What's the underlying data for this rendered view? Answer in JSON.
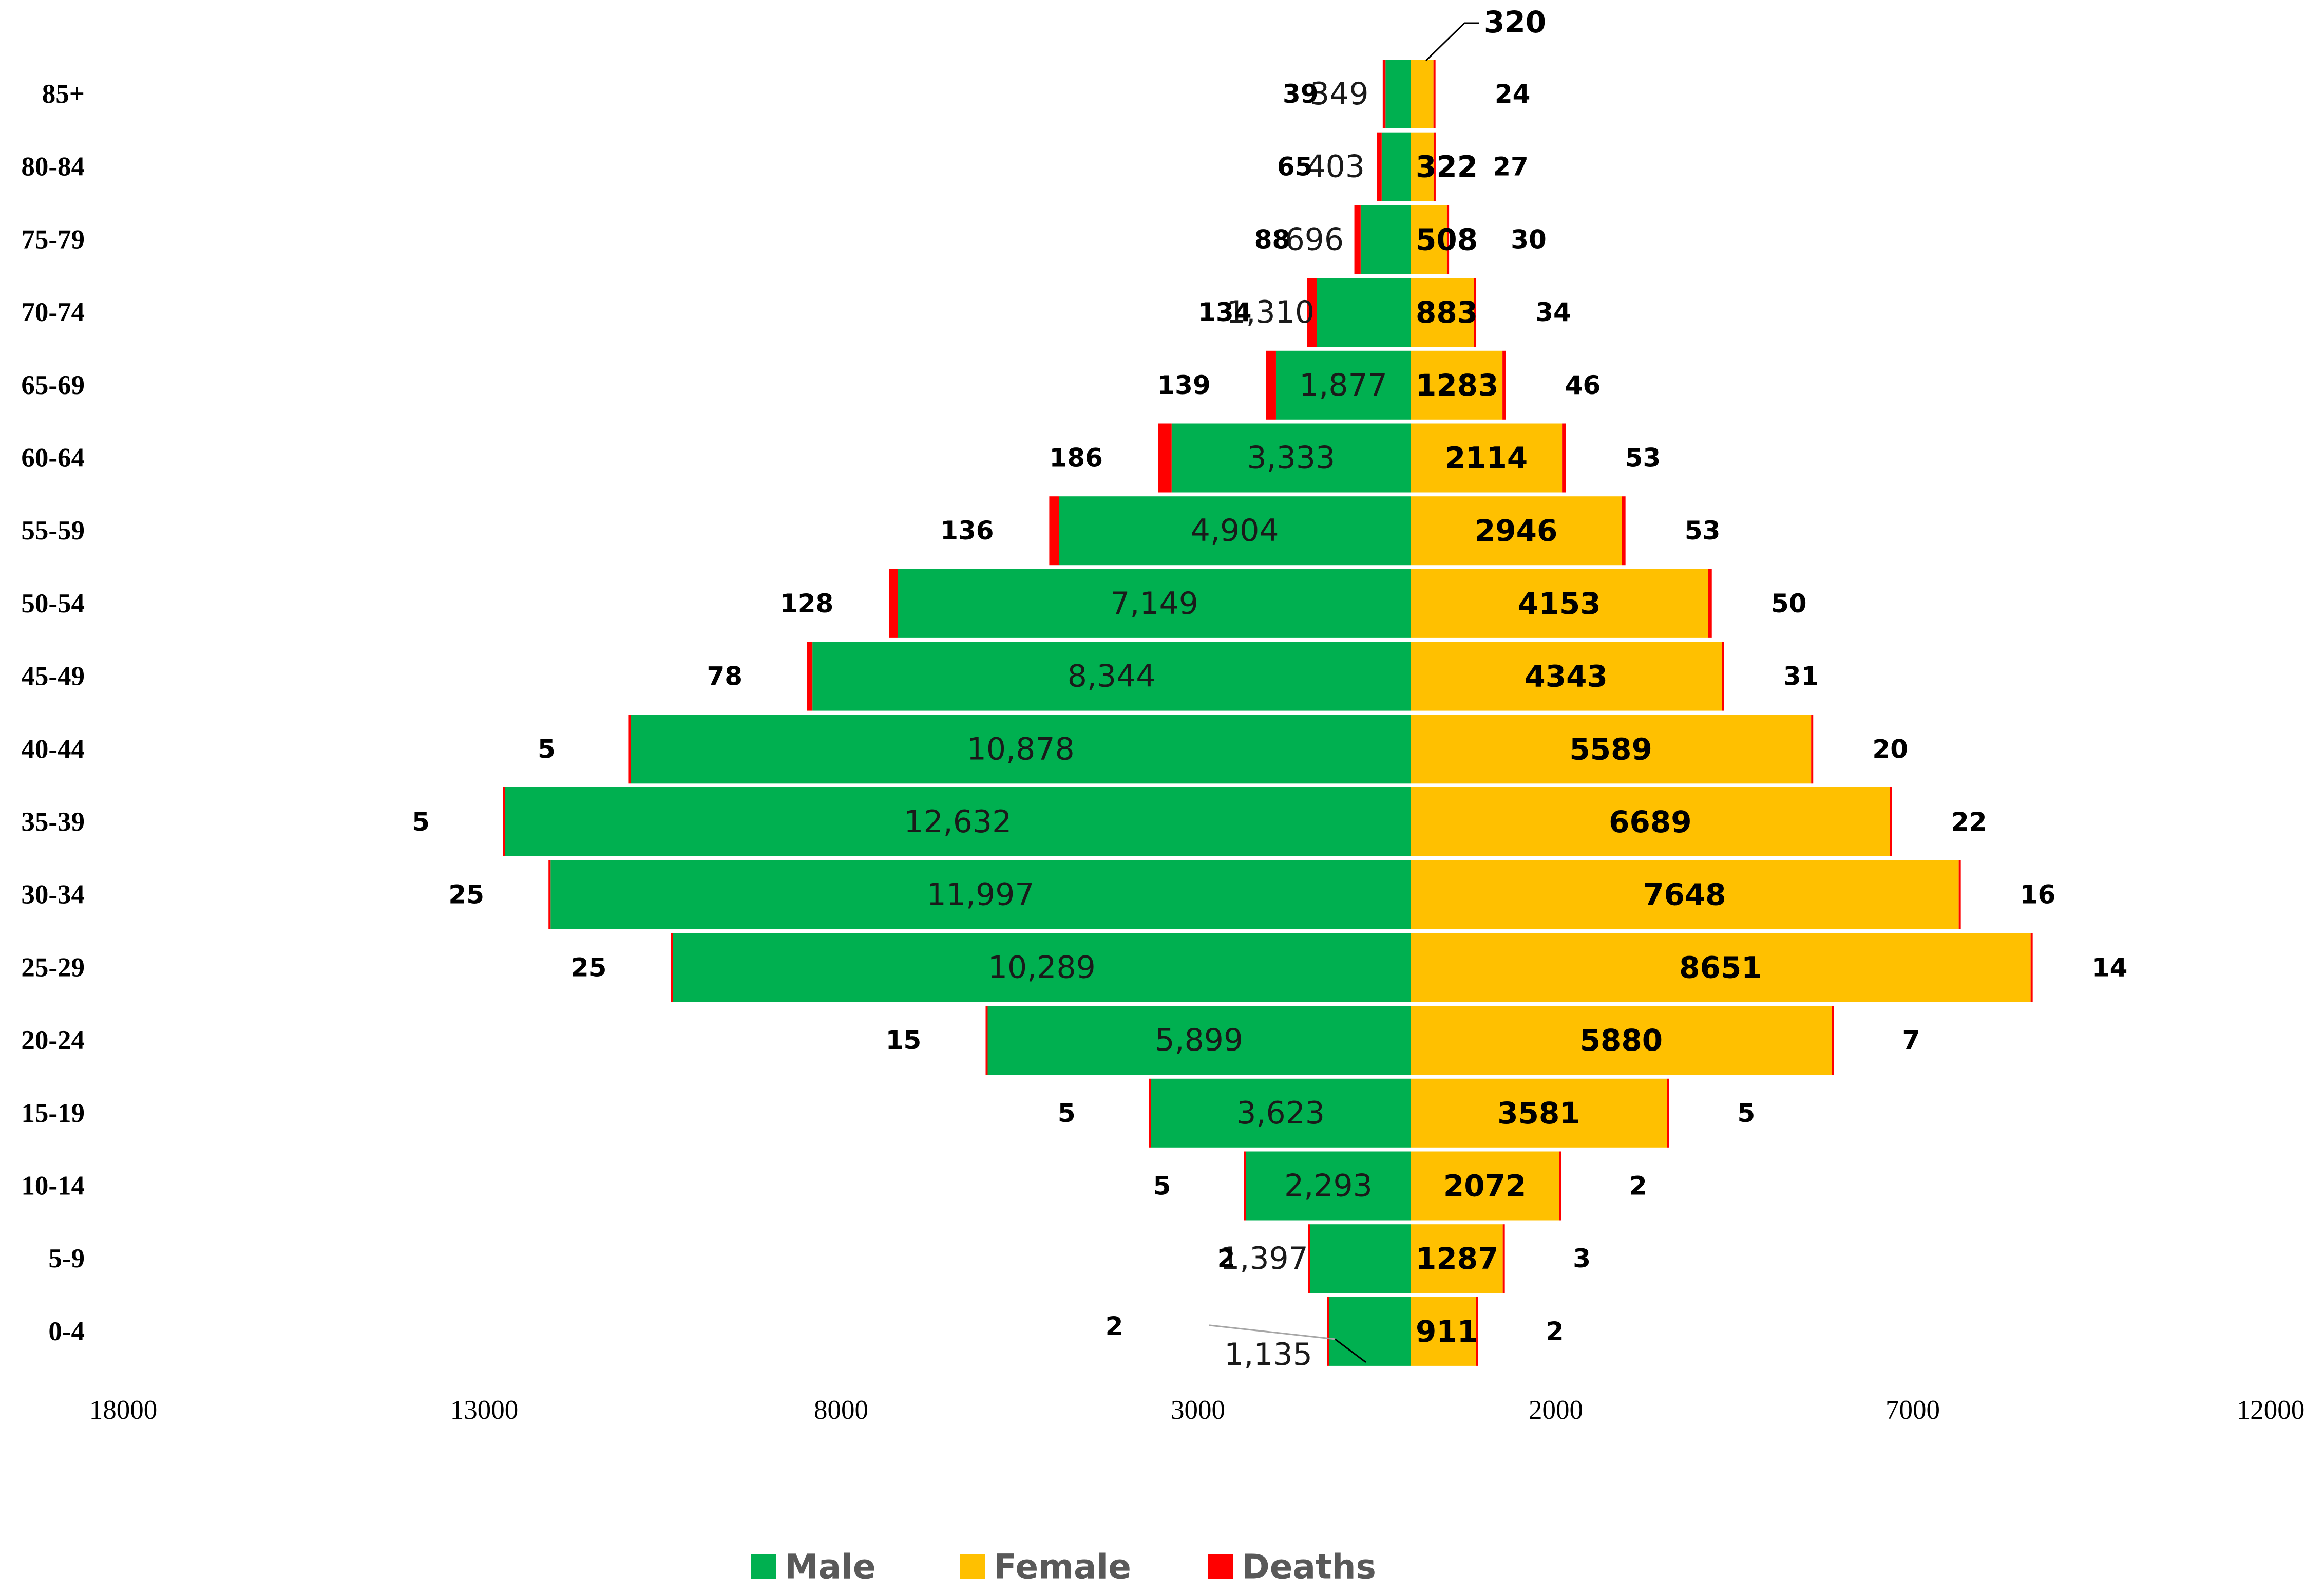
{
  "chart_data": {
    "type": "bar",
    "orientation": "horizontal",
    "subtype": "population-pyramid",
    "categories": [
      "85+",
      "80-84",
      "75-79",
      "70-74",
      "65-69",
      "60-64",
      "55-59",
      "50-54",
      "45-49",
      "40-44",
      "35-39",
      "30-34",
      "25-29",
      "20-24",
      "15-19",
      "10-14",
      "5-9",
      "0-4"
    ],
    "series": [
      {
        "name": "Male",
        "color": "#00b050",
        "values": [
          349,
          403,
          696,
          1310,
          1877,
          3333,
          4904,
          7149,
          8344,
          10878,
          12632,
          11997,
          10289,
          5899,
          3623,
          2293,
          1397,
          1135
        ],
        "value_labels": [
          "349",
          "403",
          "696",
          "1,310",
          "1,877",
          "3,333",
          "4,904",
          "7,149",
          "8,344",
          "10,878",
          "12,632",
          "11,997",
          "10,289",
          "5,899",
          "3,623",
          "2,293",
          "1,397",
          "1,135"
        ],
        "male_deaths": [
          39,
          65,
          88,
          134,
          139,
          186,
          136,
          128,
          78,
          5,
          5,
          25,
          25,
          15,
          5,
          5,
          2,
          2
        ]
      },
      {
        "name": "Female",
        "color": "#ffc000",
        "values": [
          320,
          322,
          508,
          883,
          1283,
          2114,
          2946,
          4153,
          4343,
          5589,
          6689,
          7648,
          8651,
          5880,
          3581,
          2072,
          1287,
          911
        ],
        "female_deaths": [
          24,
          27,
          30,
          34,
          46,
          53,
          53,
          50,
          31,
          20,
          22,
          16,
          14,
          7,
          5,
          2,
          3,
          2
        ]
      },
      {
        "name": "Deaths",
        "color": "#ff0000"
      }
    ],
    "x_ticks": [
      "18000",
      "13000",
      "8000",
      "3000",
      "2000",
      "7000",
      "12000"
    ],
    "xlim": [
      -18000,
      12000
    ],
    "legend": {
      "position": "bottom"
    }
  }
}
